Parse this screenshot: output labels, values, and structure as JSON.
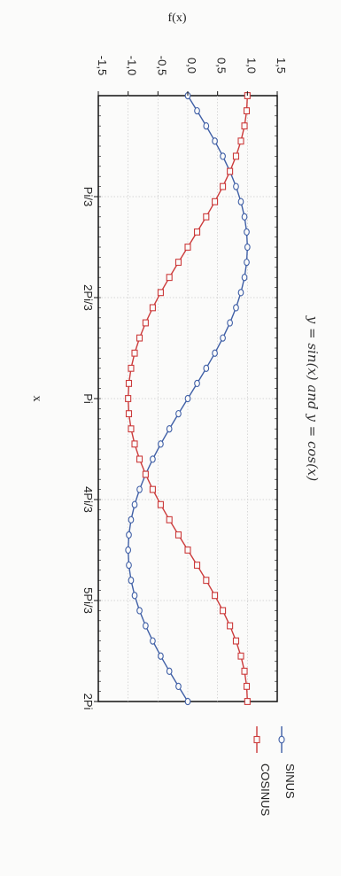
{
  "chart_data": {
    "type": "line",
    "title": "y = sin(x) and y = cos(x)",
    "xlabel": "x",
    "ylabel": "f(x)",
    "xlim": [
      0,
      6.2832
    ],
    "ylim": [
      -1.5,
      1.5
    ],
    "grid": true,
    "x_ticks": [
      {
        "value": 1.0472,
        "label": "Pi/3"
      },
      {
        "value": 2.0944,
        "label": "2Pi/3"
      },
      {
        "value": 3.1416,
        "label": "Pi"
      },
      {
        "value": 4.1888,
        "label": "4Pi/3"
      },
      {
        "value": 5.236,
        "label": "5Pi/3"
      },
      {
        "value": 6.2832,
        "label": "2Pi"
      }
    ],
    "y_ticks": [
      {
        "value": 1.5,
        "label": "1,5"
      },
      {
        "value": 1.0,
        "label": "1,0"
      },
      {
        "value": 0.5,
        "label": "0,5"
      },
      {
        "value": 0.0,
        "label": "0,0"
      },
      {
        "value": -0.5,
        "label": "-0,5"
      },
      {
        "value": -1.0,
        "label": "-1,0"
      },
      {
        "value": -1.5,
        "label": "-1,5"
      }
    ],
    "x": [
      0,
      0.1571,
      0.3142,
      0.4712,
      0.6283,
      0.7854,
      0.9425,
      1.0996,
      1.2566,
      1.4137,
      1.5708,
      1.7279,
      1.885,
      2.042,
      2.1991,
      2.3562,
      2.5133,
      2.6704,
      2.8274,
      2.9845,
      3.1416,
      3.2987,
      3.4558,
      3.6128,
      3.7699,
      3.927,
      4.0841,
      4.2412,
      4.3982,
      4.5553,
      4.7124,
      4.8695,
      5.0265,
      5.1836,
      5.3407,
      5.4978,
      5.6549,
      5.8119,
      5.969,
      6.1261,
      6.2832
    ],
    "series": [
      {
        "name": "SINUS",
        "color": "#3f5fa6",
        "marker": "circle",
        "values": [
          0,
          0.1564,
          0.309,
          0.454,
          0.5878,
          0.7071,
          0.809,
          0.891,
          0.9511,
          0.9877,
          1,
          0.9877,
          0.9511,
          0.891,
          0.809,
          0.7071,
          0.5878,
          0.454,
          0.309,
          0.1564,
          0,
          -0.1564,
          -0.309,
          -0.454,
          -0.5878,
          -0.7071,
          -0.809,
          -0.891,
          -0.9511,
          -0.9877,
          -1,
          -0.9877,
          -0.9511,
          -0.891,
          -0.809,
          -0.7071,
          -0.5878,
          -0.454,
          -0.309,
          -0.1564,
          0
        ]
      },
      {
        "name": "COSINUS",
        "color": "#cc3b3b",
        "marker": "square",
        "values": [
          1,
          0.9877,
          0.9511,
          0.891,
          0.809,
          0.7071,
          0.5878,
          0.454,
          0.309,
          0.1564,
          0,
          -0.1564,
          -0.309,
          -0.454,
          -0.5878,
          -0.7071,
          -0.809,
          -0.891,
          -0.9511,
          -0.9877,
          -1,
          -0.9877,
          -0.9511,
          -0.891,
          -0.809,
          -0.7071,
          -0.5878,
          -0.454,
          -0.309,
          -0.1564,
          0,
          0.1564,
          0.309,
          0.454,
          0.5878,
          0.7071,
          0.809,
          0.891,
          0.9511,
          0.9877,
          1
        ]
      }
    ],
    "legend": "bottom"
  }
}
